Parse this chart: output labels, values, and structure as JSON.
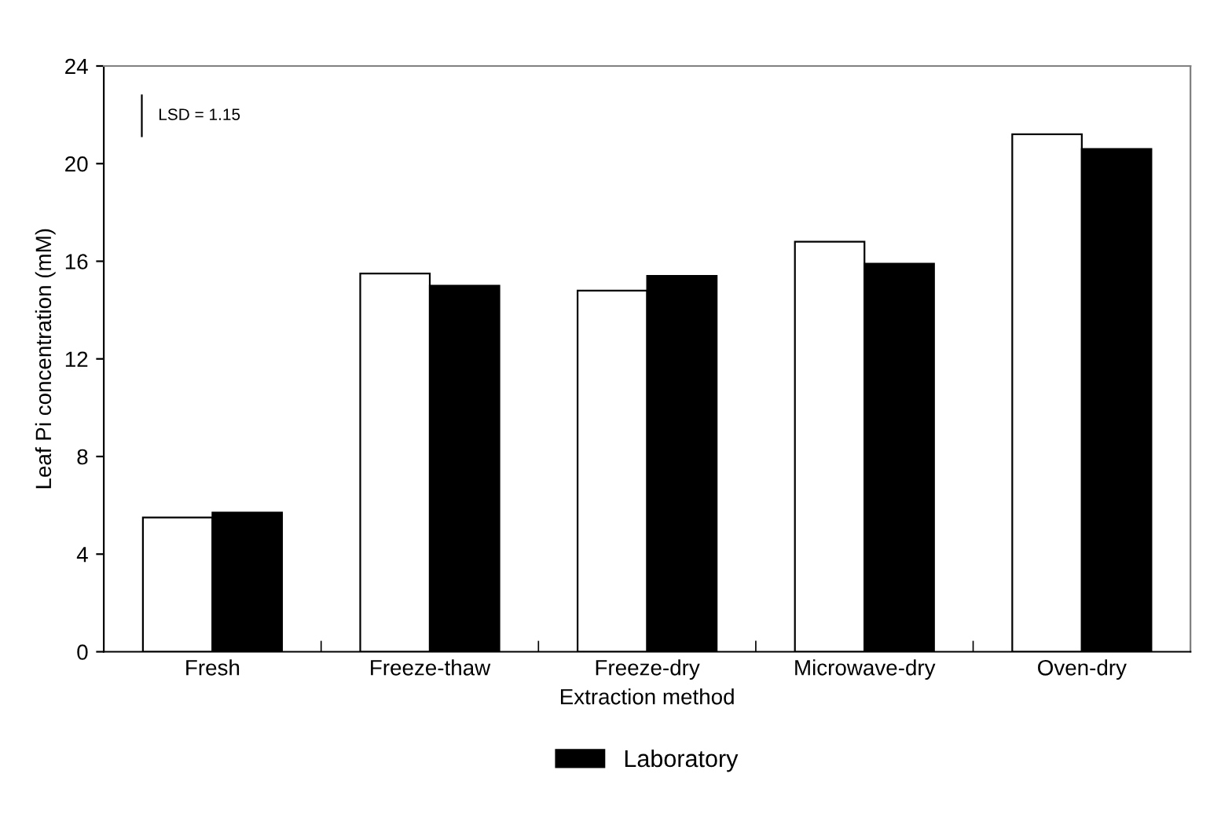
{
  "chart_data": {
    "type": "bar",
    "xlabel": "Extraction method",
    "ylabel": "Leaf Pi concentration (mM)",
    "categories": [
      "Fresh",
      "Freeze-thaw",
      "Freeze-dry",
      "Microwave-dry",
      "Oven-dry"
    ],
    "series": [
      {
        "color": "#ffffff",
        "values": [
          5.5,
          15.5,
          14.8,
          16.8,
          21.2
        ]
      },
      {
        "name": "Laboratory",
        "color": "#000000",
        "values": [
          5.7,
          15.0,
          15.4,
          15.9,
          20.6
        ]
      }
    ],
    "ylim": [
      0,
      24
    ],
    "yticks": [
      0,
      4,
      8,
      12,
      16,
      20,
      24
    ],
    "grid": false,
    "legend": "bottom",
    "annotations": [
      "LSD = 1.15"
    ]
  }
}
